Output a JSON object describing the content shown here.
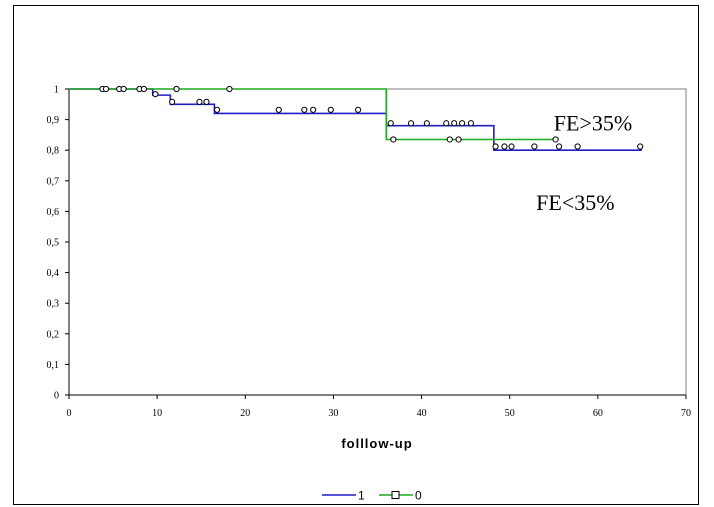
{
  "chart_data": {
    "type": "line",
    "title": "",
    "xlabel": "folllow-up",
    "ylabel": "",
    "xlim": [
      0,
      70
    ],
    "ylim": [
      0,
      1
    ],
    "x_ticks": [
      "0",
      "10",
      "20",
      "30",
      "40",
      "50",
      "60",
      "70"
    ],
    "y_ticks": [
      "0",
      "0,1",
      "0,2",
      "0,3",
      "0,4",
      "0,5",
      "0,6",
      "0,7",
      "0,8",
      "0,9",
      "1"
    ],
    "grid": false,
    "legend_position": "bottom",
    "annotations": [
      {
        "text": "FE>35%",
        "x": 55,
        "y": 0.89
      },
      {
        "text": "FE<35%",
        "x": 53,
        "y": 0.63
      }
    ],
    "series": [
      {
        "name": "1",
        "color": "#1f1fc8",
        "step_x": [
          0,
          9.5,
          11.5,
          16.5,
          36,
          48.2,
          65
        ],
        "step_y": [
          1,
          0.98,
          0.95,
          0.92,
          0.88,
          0.8,
          0.8
        ],
        "censored": [
          [
            3.8,
            1.0
          ],
          [
            5.7,
            1.0
          ],
          [
            8.0,
            1.0
          ],
          [
            9.8,
            0.983
          ],
          [
            11.7,
            0.958
          ],
          [
            14.8,
            0.958
          ],
          [
            15.6,
            0.958
          ],
          [
            16.8,
            0.932
          ],
          [
            23.8,
            0.932
          ],
          [
            26.7,
            0.932
          ],
          [
            27.7,
            0.932
          ],
          [
            29.7,
            0.932
          ],
          [
            32.8,
            0.932
          ],
          [
            36.5,
            0.888
          ],
          [
            38.8,
            0.888
          ],
          [
            40.6,
            0.888
          ],
          [
            42.8,
            0.888
          ],
          [
            43.7,
            0.888
          ],
          [
            44.6,
            0.888
          ],
          [
            45.6,
            0.888
          ],
          [
            48.4,
            0.812
          ],
          [
            49.4,
            0.812
          ],
          [
            50.2,
            0.812
          ],
          [
            52.8,
            0.812
          ],
          [
            55.6,
            0.812
          ],
          [
            57.7,
            0.812
          ],
          [
            64.8,
            0.812
          ]
        ]
      },
      {
        "name": "0",
        "color": "#1ea81e",
        "step_x": [
          0,
          36,
          55.5
        ],
        "step_y": [
          1,
          0.835,
          0.835
        ],
        "censored": [
          [
            4.2,
            1.0
          ],
          [
            6.2,
            1.0
          ],
          [
            8.5,
            1.0
          ],
          [
            12.2,
            1.0
          ],
          [
            18.2,
            1.0
          ],
          [
            36.8,
            0.835
          ],
          [
            43.2,
            0.835
          ],
          [
            44.2,
            0.835
          ],
          [
            55.2,
            0.835
          ]
        ]
      }
    ]
  }
}
